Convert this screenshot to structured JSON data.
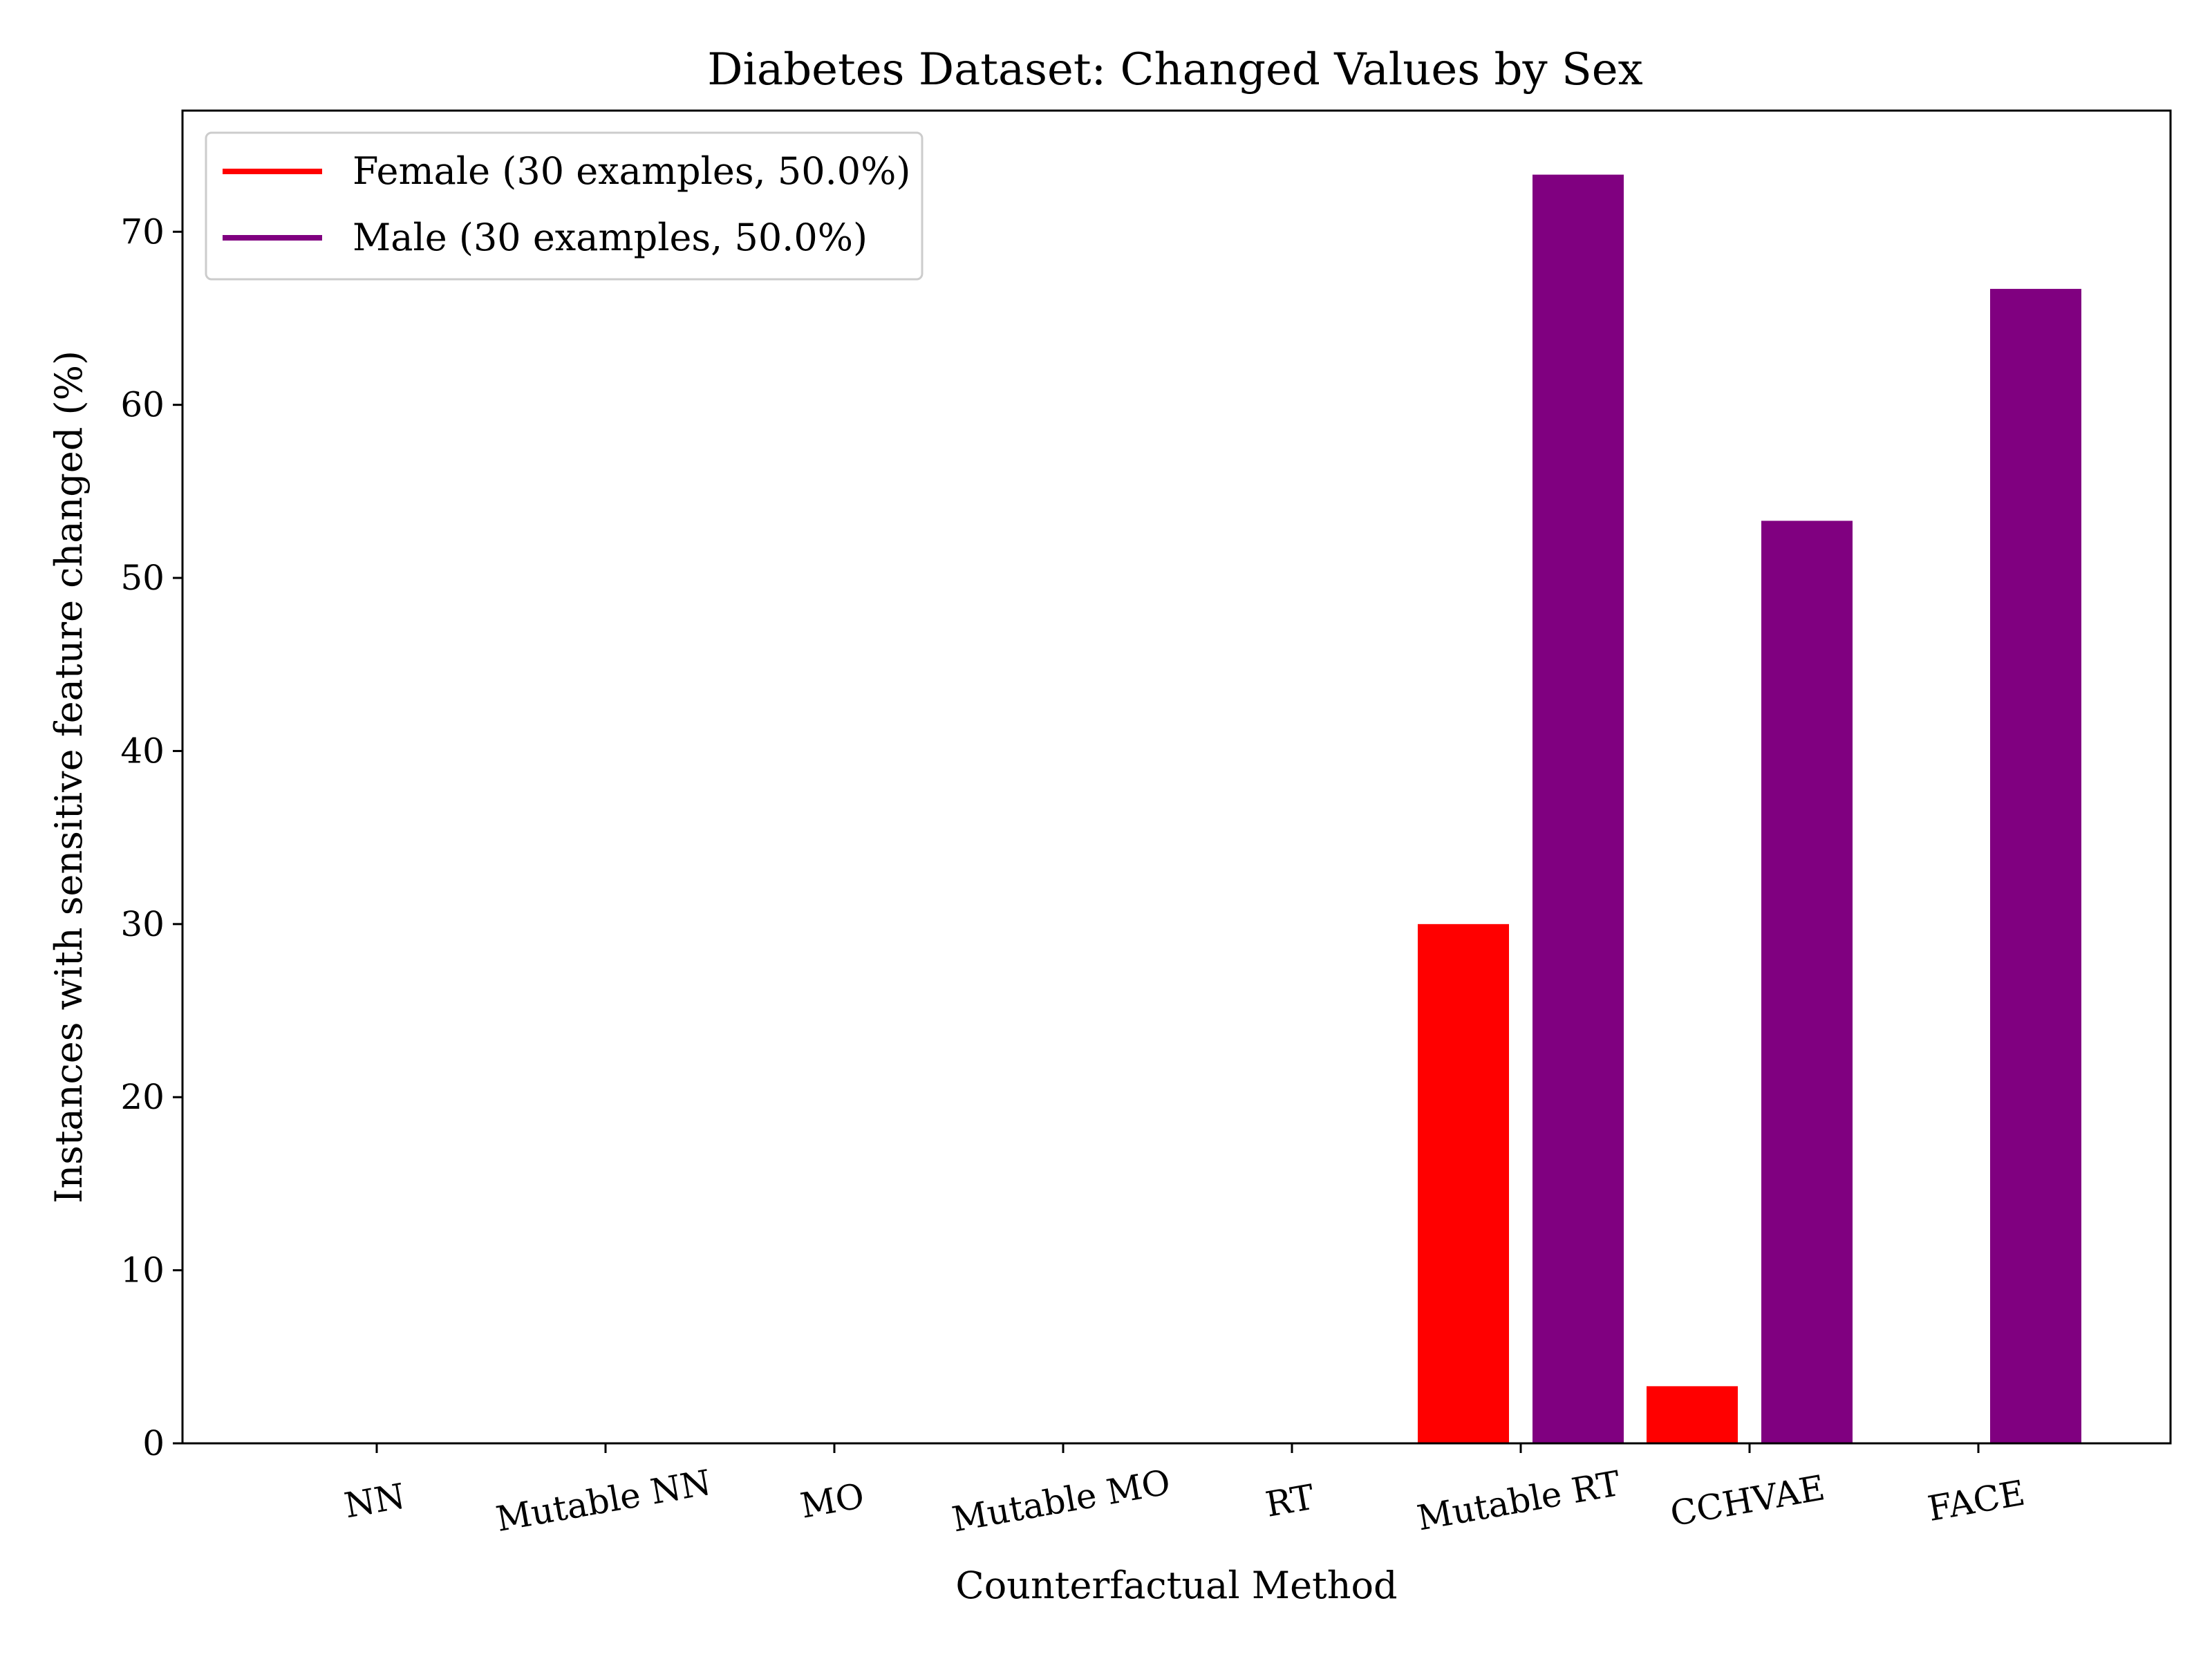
{
  "chart_data": {
    "type": "bar",
    "title": "Diabetes Dataset: Changed Values by Sex",
    "xlabel": "Counterfactual Method",
    "ylabel": "Instances with sensitive feature changed (%)",
    "categories": [
      "NN",
      "Mutable NN",
      "MO",
      "Mutable MO",
      "RT",
      "Mutable RT",
      "CCHVAE",
      "FACE"
    ],
    "series": [
      {
        "name": "Female (30 examples, 50.0%)",
        "color": "#ff0000",
        "values": [
          0,
          0,
          0,
          0,
          0,
          30.0,
          3.3,
          0
        ]
      },
      {
        "name": "Male (30 examples, 50.0%)",
        "color": "#800080",
        "values": [
          0,
          0,
          0,
          0,
          0,
          73.3,
          53.3,
          66.7
        ]
      }
    ],
    "ylim": [
      0,
      77
    ],
    "yticks": [
      0,
      10,
      20,
      30,
      40,
      50,
      60,
      70
    ],
    "grid": false,
    "legend_position": "top-left"
  }
}
